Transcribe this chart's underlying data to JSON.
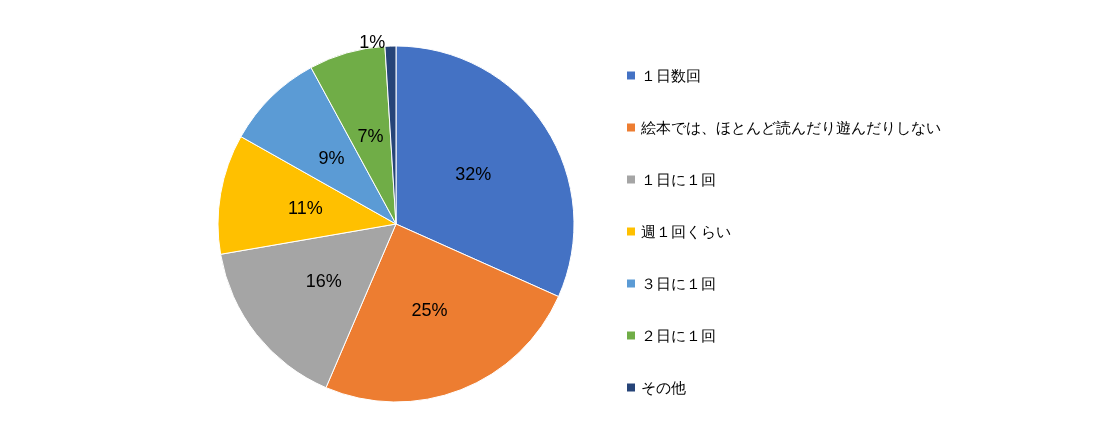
{
  "chart_data": {
    "type": "pie",
    "categories": [
      "１日数回",
      "絵本では、ほとんど読んだり遊んだりしない",
      "１日に１回",
      "週１回くらい",
      "３日に１回",
      "２日に１回",
      "その他"
    ],
    "values": [
      32,
      25,
      16,
      11,
      9,
      7,
      1
    ],
    "colors": [
      "#4472c4",
      "#ed7d31",
      "#a5a5a5",
      "#ffc000",
      "#5b9bd5",
      "#70ad47",
      "#264478"
    ],
    "value_labels": [
      "32%",
      "25%",
      "16%",
      "11%",
      "9%",
      "7%",
      "1%"
    ],
    "legend": "right"
  }
}
